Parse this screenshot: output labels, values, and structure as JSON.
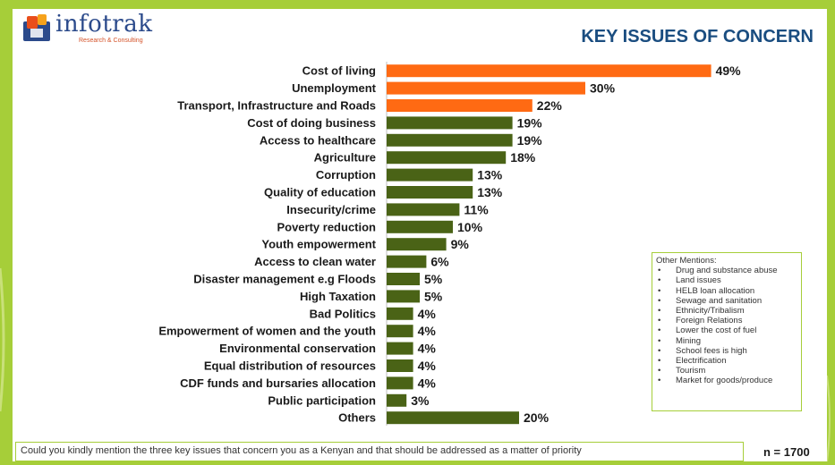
{
  "logo": {
    "name": "infotrak",
    "tagline": "Research & Consulting"
  },
  "title": "KEY ISSUES OF CONCERN",
  "colors": {
    "top_issues": "#ff6a13",
    "other_issues": "#4a6316",
    "frame": "#a6ce39"
  },
  "chart_data": {
    "type": "bar",
    "orientation": "horizontal",
    "unit": "%",
    "categories": [
      "Cost of living",
      "Unemployment",
      "Transport, Infrastructure and Roads",
      "Cost of doing business",
      "Access to healthcare",
      "Agriculture",
      "Corruption",
      "Quality of education",
      "Insecurity/crime",
      "Poverty reduction",
      "Youth empowerment",
      "Access to clean water",
      "Disaster management e.g Floods",
      "High Taxation",
      "Bad Politics",
      "Empowerment of women and the youth",
      "Environmental conservation",
      "Equal distribution of resources",
      "CDF funds and bursaries allocation",
      "Public participation",
      "Others"
    ],
    "values": [
      49,
      30,
      22,
      19,
      19,
      18,
      13,
      13,
      11,
      10,
      9,
      6,
      5,
      5,
      4,
      4,
      4,
      4,
      4,
      3,
      20
    ],
    "highlight_top_n": 3,
    "title": "KEY ISSUES OF CONCERN",
    "xlabel": "",
    "ylabel": ""
  },
  "other_mentions": {
    "title": "Other Mentions:",
    "items": [
      "Drug and substance abuse",
      "Land issues",
      "HELB loan allocation",
      "Sewage and sanitation",
      "Ethnicity/Tribalism",
      "Foreign Relations",
      "Lower the cost of fuel",
      "Mining",
      "School fees is high",
      "Electrification",
      "Tourism",
      "Market for goods/produce"
    ]
  },
  "question": "Could you kindly mention the three key issues that concern you as a Kenyan and that should be addressed as a matter of priority",
  "sample_size": "n = 1700"
}
